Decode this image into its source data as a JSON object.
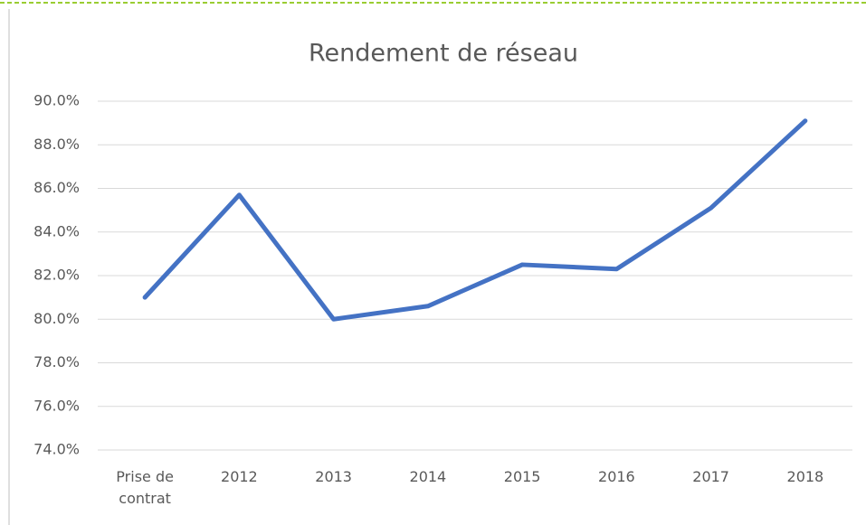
{
  "chart_data": {
    "type": "line",
    "title": "Rendement de réseau",
    "categories": [
      "Prise de contrat",
      "2012",
      "2013",
      "2014",
      "2015",
      "2016",
      "2017",
      "2018"
    ],
    "series": [
      {
        "name": "Rendement de réseau",
        "color": "#4472c4",
        "values": [
          81.0,
          85.7,
          80.0,
          80.6,
          82.5,
          82.3,
          85.1,
          89.1
        ]
      }
    ],
    "ylim": [
      74,
      90
    ],
    "yticks": [
      {
        "value": 74,
        "label": "74.0%"
      },
      {
        "value": 76,
        "label": "76.0%"
      },
      {
        "value": 78,
        "label": "78.0%"
      },
      {
        "value": 80,
        "label": "80.0%"
      },
      {
        "value": 82,
        "label": "82.0%"
      },
      {
        "value": 84,
        "label": "84.0%"
      },
      {
        "value": 86,
        "label": "86.0%"
      },
      {
        "value": 88,
        "label": "88.0%"
      },
      {
        "value": 90,
        "label": "90.0%"
      }
    ],
    "grid": true
  }
}
